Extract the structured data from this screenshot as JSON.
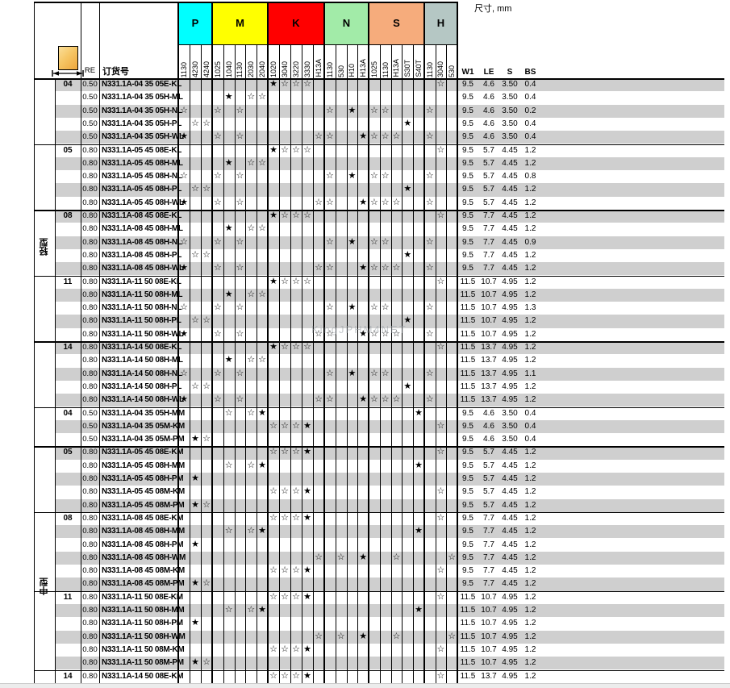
{
  "page": {
    "dim_note": "尺寸, mm",
    "watermark": "KingJPHM4NET"
  },
  "header": {
    "re_label": "RE",
    "order_label": "订货号",
    "dim_cols": [
      "W1",
      "LE",
      "S",
      "BS"
    ],
    "sections": [
      {
        "key": "P",
        "color": "#00ffff",
        "grades": [
          "1130",
          "4230",
          "4240"
        ]
      },
      {
        "key": "M",
        "color": "#ffff00",
        "grades": [
          "1025",
          "1040",
          "1130",
          "2030",
          "2040"
        ]
      },
      {
        "key": "K",
        "color": "#ff0000",
        "grades": [
          "1020",
          "3040",
          "3220",
          "3330",
          "H13A"
        ]
      },
      {
        "key": "N",
        "color": "#a2eba8",
        "grades": [
          "1130",
          "530",
          "H10",
          "H13A"
        ]
      },
      {
        "key": "S",
        "color": "#f6ac7c",
        "grades": [
          "1025",
          "1130",
          "H13A",
          "S30T",
          "S40T"
        ]
      },
      {
        "key": "H",
        "color": "#b5c7c4",
        "grades": [
          "1130",
          "3040",
          "530"
        ]
      }
    ]
  },
  "star_patterns": {
    "E-KL": {
      "8": "f",
      "9": "o",
      "10": "o",
      "11": "o",
      "23": "o"
    },
    "H-ML": {
      "4": "f",
      "6": "o",
      "7": "o"
    },
    "H-NL": {
      "0": "o",
      "3": "o",
      "5": "o",
      "13": "o",
      "15": "f",
      "17": "o",
      "18": "o",
      "22": "o"
    },
    "H-PL": {
      "1": "o",
      "2": "o",
      "20": "f"
    },
    "H-WL": {
      "0": "f",
      "3": "o",
      "5": "o",
      "12": "o",
      "13": "o",
      "16": "f",
      "17": "o",
      "18": "o",
      "19": "o",
      "22": "o"
    },
    "H-MM": {
      "4": "o",
      "6": "o",
      "7": "f",
      "21": "f"
    },
    "KM": {
      "8": "o",
      "9": "o",
      "10": "o",
      "11": "f",
      "23": "o"
    },
    "H-PM": {
      "1": "f"
    },
    "M-PM": {
      "1": "f",
      "2": "o"
    },
    "H-WM": {
      "12": "o",
      "14": "o",
      "16": "f",
      "19": "o",
      "24": "o"
    }
  },
  "body": {
    "sections": [
      {
        "label": "轻型",
        "groups": [
          {
            "size": "04",
            "re": "0.50",
            "dims": [
              "9.5",
              "4.6",
              "3.50"
            ],
            "rows": [
              {
                "order": "N331.1A-04 35 05E-KL",
                "pattern": "E-KL",
                "bs": "0.4"
              },
              {
                "order": "N331.1A-04 35 05H-ML",
                "pattern": "H-ML",
                "bs": "0.4"
              },
              {
                "order": "N331.1A-04 35 05H-NL",
                "pattern": "H-NL",
                "bs": "0.2"
              },
              {
                "order": "N331.1A-04 35 05H-PL",
                "pattern": "H-PL",
                "bs": "0.4"
              },
              {
                "order": "N331.1A-04 35 05H-WL",
                "pattern": "H-WL",
                "bs": "0.4"
              }
            ]
          },
          {
            "size": "05",
            "re": "0.80",
            "dims": [
              "9.5",
              "5.7",
              "4.45"
            ],
            "rows": [
              {
                "order": "N331.1A-05 45 08E-KL",
                "pattern": "E-KL",
                "bs": "1.2"
              },
              {
                "order": "N331.1A-05 45 08H-ML",
                "pattern": "H-ML",
                "bs": "1.2"
              },
              {
                "order": "N331.1A-05 45 08H-NL",
                "pattern": "H-NL",
                "bs": "0.8"
              },
              {
                "order": "N331.1A-05 45 08H-PL",
                "pattern": "H-PL",
                "bs": "1.2"
              },
              {
                "order": "N331.1A-05 45 08H-WL",
                "pattern": "H-WL",
                "bs": "1.2"
              }
            ]
          },
          {
            "size": "08",
            "re": "0.80",
            "dims": [
              "9.5",
              "7.7",
              "4.45"
            ],
            "rows": [
              {
                "order": "N331.1A-08 45 08E-KL",
                "pattern": "E-KL",
                "bs": "1.2"
              },
              {
                "order": "N331.1A-08 45 08H-ML",
                "pattern": "H-ML",
                "bs": "1.2"
              },
              {
                "order": "N331.1A-08 45 08H-NL",
                "pattern": "H-NL",
                "bs": "0.9"
              },
              {
                "order": "N331.1A-08 45 08H-PL",
                "pattern": "H-PL",
                "bs": "1.2"
              },
              {
                "order": "N331.1A-08 45 08H-WL",
                "pattern": "H-WL",
                "bs": "1.2"
              }
            ]
          },
          {
            "size": "11",
            "re": "0.80",
            "dims": [
              "11.5",
              "10.7",
              "4.95"
            ],
            "rows": [
              {
                "order": "N331.1A-11 50 08E-KL",
                "pattern": "E-KL",
                "bs": "1.2"
              },
              {
                "order": "N331.1A-11 50 08H-ML",
                "pattern": "H-ML",
                "bs": "1.2"
              },
              {
                "order": "N331.1A-11 50 08H-NL",
                "pattern": "H-NL",
                "bs": "1.3"
              },
              {
                "order": "N331.1A-11 50 08H-PL",
                "pattern": "H-PL",
                "bs": "1.2"
              },
              {
                "order": "N331.1A-11 50 08H-WL",
                "pattern": "H-WL",
                "bs": "1.2"
              }
            ]
          },
          {
            "size": "14",
            "re": "0.80",
            "dims": [
              "11.5",
              "13.7",
              "4.95"
            ],
            "rows": [
              {
                "order": "N331.1A-14 50 08E-KL",
                "pattern": "E-KL",
                "bs": "1.2"
              },
              {
                "order": "N331.1A-14 50 08H-ML",
                "pattern": "H-ML",
                "bs": "1.2"
              },
              {
                "order": "N331.1A-14 50 08H-NL",
                "pattern": "H-NL",
                "bs": "1.1"
              },
              {
                "order": "N331.1A-14 50 08H-PL",
                "pattern": "H-PL",
                "bs": "1.2"
              },
              {
                "order": "N331.1A-14 50 08H-WL",
                "pattern": "H-WL",
                "bs": "1.2"
              }
            ]
          }
        ]
      },
      {
        "label": "中型",
        "groups": [
          {
            "size": "04",
            "re": "0.50",
            "dims": [
              "9.5",
              "4.6",
              "3.50"
            ],
            "rows": [
              {
                "order": "N331.1A-04 35 05H-MM",
                "pattern": "H-MM",
                "bs": "0.4"
              },
              {
                "order": "N331.1A-04 35 05M-KM",
                "pattern": "KM",
                "bs": "0.4"
              },
              {
                "order": "N331.1A-04 35 05M-PM",
                "pattern": "M-PM",
                "bs": "0.4"
              }
            ]
          },
          {
            "size": "05",
            "re": "0.80",
            "dims": [
              "9.5",
              "5.7",
              "4.45"
            ],
            "rows": [
              {
                "order": "N331.1A-05 45 08E-KM",
                "pattern": "KM",
                "bs": "1.2"
              },
              {
                "order": "N331.1A-05 45 08H-MM",
                "pattern": "H-MM",
                "bs": "1.2"
              },
              {
                "order": "N331.1A-05 45 08H-PM",
                "pattern": "H-PM",
                "bs": "1.2"
              },
              {
                "order": "N331.1A-05 45 08M-KM",
                "pattern": "KM",
                "bs": "1.2"
              },
              {
                "order": "N331.1A-05 45 08M-PM",
                "pattern": "M-PM",
                "bs": "1.2"
              }
            ]
          },
          {
            "size": "08",
            "re": "0.80",
            "dims": [
              "9.5",
              "7.7",
              "4.45"
            ],
            "rows": [
              {
                "order": "N331.1A-08 45 08E-KM",
                "pattern": "KM",
                "bs": "1.2"
              },
              {
                "order": "N331.1A-08 45 08H-MM",
                "pattern": "H-MM",
                "bs": "1.2"
              },
              {
                "order": "N331.1A-08 45 08H-PM",
                "pattern": "H-PM",
                "bs": "1.2"
              },
              {
                "order": "N331.1A-08 45 08H-WM",
                "pattern": "H-WM",
                "bs": "1.2"
              },
              {
                "order": "N331.1A-08 45 08M-KM",
                "pattern": "KM",
                "bs": "1.2"
              },
              {
                "order": "N331.1A-08 45 08M-PM",
                "pattern": "M-PM",
                "bs": "1.2"
              }
            ]
          },
          {
            "size": "11",
            "re": "0.80",
            "dims": [
              "11.5",
              "10.7",
              "4.95"
            ],
            "rows": [
              {
                "order": "N331.1A-11 50 08E-KM",
                "pattern": "KM",
                "bs": "1.2"
              },
              {
                "order": "N331.1A-11 50 08H-MM",
                "pattern": "H-MM",
                "bs": "1.2"
              },
              {
                "order": "N331.1A-11 50 08H-PM",
                "pattern": "H-PM",
                "bs": "1.2"
              },
              {
                "order": "N331.1A-11 50 08H-WM",
                "pattern": "H-WM",
                "bs": "1.2"
              },
              {
                "order": "N331.1A-11 50 08M-KM",
                "pattern": "KM",
                "bs": "1.2"
              },
              {
                "order": "N331.1A-11 50 08M-PM",
                "pattern": "M-PM",
                "bs": "1.2"
              }
            ]
          },
          {
            "size": "14",
            "re": "0.80",
            "dims": [
              "11.5",
              "13.7",
              "4.95"
            ],
            "rows": [
              {
                "order": "N331.1A-14 50 08E-KM",
                "pattern": "KM",
                "bs": "1.2"
              }
            ]
          }
        ]
      }
    ]
  }
}
